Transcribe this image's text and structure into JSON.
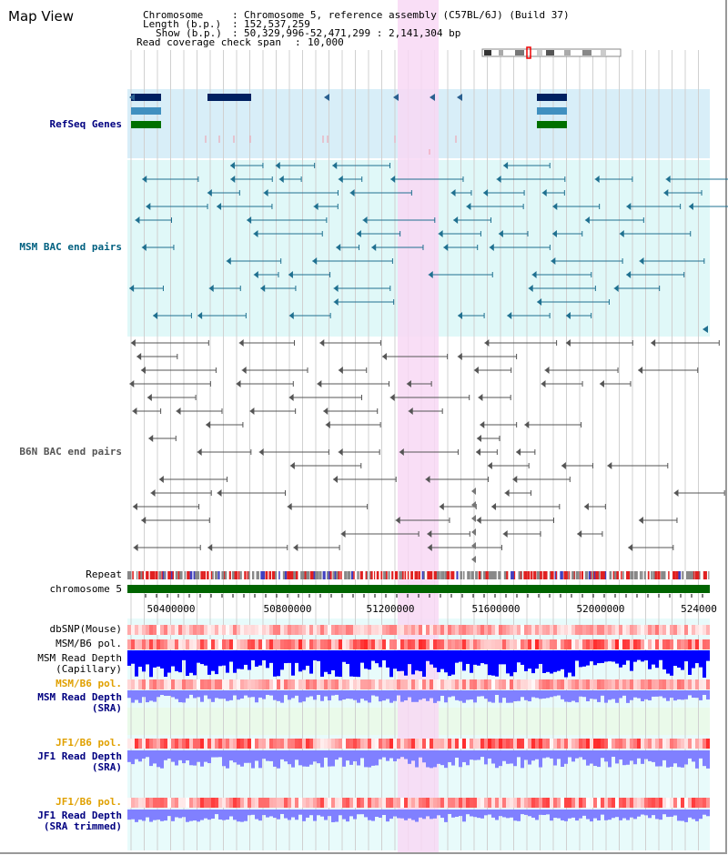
{
  "title": "Map View",
  "info": {
    "chromosome_key": "Chromosome",
    "chromosome_val": "Chromosome 5, reference assembly (C57BL/6J) (Build 37)",
    "length_key": "Length (b.p.)",
    "length_val": "152,537,259",
    "show_key": "Show (b.p.)",
    "show_val": "50,329,996-52,471,299 : 2,141,304 bp",
    "coverage_key": "Read coverage check span",
    "coverage_val": "10,000"
  },
  "tracks": {
    "refseq": "RefSeq Genes",
    "msm_bac": "MSM BAC end pairs",
    "b6n_bac": "B6N BAC end pairs",
    "repeat": "Repeat",
    "chromosome": "chromosome 5",
    "dbsnp": "dbSNP(Mouse)",
    "msm_b6_pol_1": "MSM/B6 pol.",
    "msm_read_depth_cap_1": "MSM Read Depth",
    "msm_read_depth_cap_2": "(Capillary)",
    "msm_b6_pol_2": "MSM/B6 pol.",
    "msm_read_depth_sra_1": "MSM Read Depth",
    "msm_read_depth_sra_2": "(SRA)",
    "jf1_b6_pol_1": "JF1/B6 pol.",
    "jf1_read_depth_sra_1": "JF1 Read Depth",
    "jf1_read_depth_sra_2": "(SRA)",
    "jf1_b6_pol_2": "JF1/B6 pol.",
    "jf1_read_depth_trim_1": "JF1 Read Depth",
    "jf1_read_depth_trim_2": "(SRA trimmed)"
  },
  "axis_ticks": [
    "50400000",
    "50800000",
    "51200000",
    "51600000",
    "52000000",
    "524000"
  ],
  "colors": {
    "label_blue": "#000080",
    "label_teal": "#006080",
    "label_orange": "#e0a000",
    "highlight": "#f8d8f4",
    "refseq_bg": "#d8eef8",
    "msm_bg": "#e0f8f8",
    "chromosome_bar": "#006400",
    "msm_depth_blue": "#0000ff",
    "sra_depth": "#8080ff"
  }
}
